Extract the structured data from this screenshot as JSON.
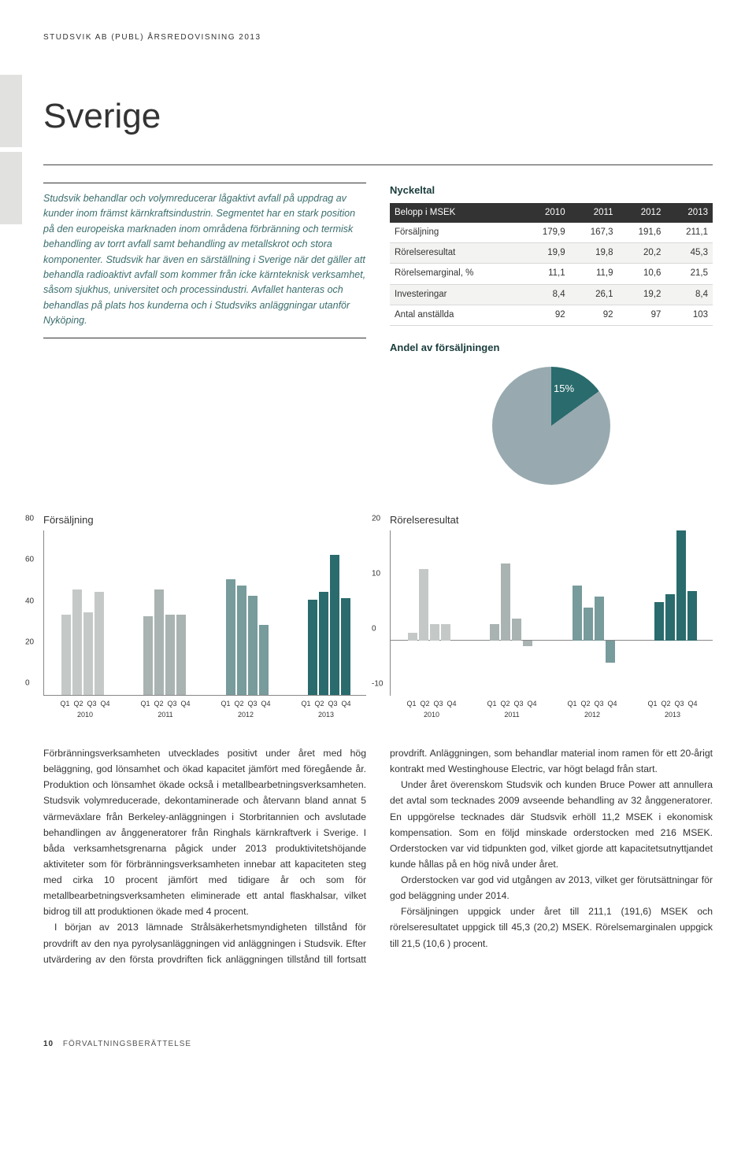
{
  "header": "STUDSVIK AB (PUBL) ÅRSREDOVISNING 2013",
  "title": "Sverige",
  "intro": "Studsvik behandlar och volymreducerar lågaktivt avfall på uppdrag av kunder inom främst kärnkraftsindustrin. Segmentet har en stark position på den europeiska marknaden inom områdena förbränning och termisk behandling av torrt avfall samt behandling av metallskrot och stora komponenter. Studsvik har även en särställning i Sverige när det gäller att behandla radioaktivt avfall som kommer från icke kärnteknisk verksamhet, såsom sjukhus, universitet och processindustri. Avfallet hanteras och behandlas på plats hos kunderna och i Studsviks anläggningar utanför Nyköping.",
  "kpi": {
    "title": "Nyckeltal",
    "header_label": "Belopp i MSEK",
    "years": [
      "2010",
      "2011",
      "2012",
      "2013"
    ],
    "rows": [
      {
        "label": "Försäljning",
        "v": [
          "179,9",
          "167,3",
          "191,6",
          "211,1"
        ]
      },
      {
        "label": "Rörelseresultat",
        "v": [
          "19,9",
          "19,8",
          "20,2",
          "45,3"
        ]
      },
      {
        "label": "Rörelsemarginal, %",
        "v": [
          "11,1",
          "11,9",
          "10,6",
          "21,5"
        ]
      },
      {
        "label": "Investeringar",
        "v": [
          "8,4",
          "26,1",
          "19,2",
          "8,4"
        ]
      },
      {
        "label": "Antal anställda",
        "v": [
          "92",
          "92",
          "97",
          "103"
        ]
      }
    ]
  },
  "andel": {
    "title": "Andel av försäljningen",
    "slice_percent": 15,
    "slice_label": "15%",
    "slice_color": "#2a6b6d",
    "rest_color": "#98aab0"
  },
  "chart_colors": [
    "#c4c9c7",
    "#a9b3b1",
    "#789b9c",
    "#2a6b6d"
  ],
  "sales_chart": {
    "title": "Försäljning",
    "y_max": 80,
    "y_ticks": [
      0,
      20,
      40,
      60,
      80
    ],
    "years": [
      "2010",
      "2011",
      "2012",
      "2013"
    ],
    "quarters": [
      "Q1",
      "Q2",
      "Q3",
      "Q4"
    ],
    "data": [
      [
        39,
        51,
        40,
        50
      ],
      [
        38,
        51,
        39,
        39
      ],
      [
        56,
        53,
        48,
        34
      ],
      [
        46,
        50,
        68,
        47
      ]
    ]
  },
  "result_chart": {
    "title": "Rörelseresultat",
    "y_min": -10,
    "y_max": 20,
    "y_ticks": [
      -10,
      0,
      10,
      20
    ],
    "years": [
      "2010",
      "2011",
      "2012",
      "2013"
    ],
    "quarters": [
      "Q1",
      "Q2",
      "Q3",
      "Q4"
    ],
    "data": [
      [
        1.5,
        13,
        3,
        3
      ],
      [
        3,
        14,
        4,
        -1
      ],
      [
        10,
        6,
        8,
        -4
      ],
      [
        7,
        8.5,
        20,
        9
      ]
    ]
  },
  "body": {
    "p1": "Förbränningsverksamheten utvecklades positivt under året med hög beläggning, god lönsamhet och ökad kapacitet jämfört med föregående år. Produktion och lönsamhet ökade också i metallbearbetningsverksamheten. Studsvik volymreducerade, dekontaminerade och återvann bland annat 5 värmeväxlare från Berkeley-anläggningen i Storbritannien och avslutade behandlingen av ånggeneratorer från Ringhals kärnkraftverk i Sverige. I båda verksamhetsgrenarna pågick under 2013 produktivitetshöjande aktiviteter som för förbränningsverksamheten innebar att kapaciteten steg med cirka 10 procent jämfört med tidigare år och som för metallbearbetningsverksamheten eliminerade ett antal flaskhalsar, vilket bidrog till att produktionen ökade med 4 procent.",
    "p2": "I början av 2013 lämnade Strålsäkerhetsmyndigheten tillstånd för provdrift av den nya pyrolysanläggningen vid anläggningen i Studsvik. Efter utvärdering av den första provdriften fick anläggningen tillstånd till fortsatt provdrift. Anläggningen, som behandlar material inom ramen för ett 20-årigt kontrakt med Westinghouse Electric, var högt belagd från start.",
    "p3": "Under året överenskom Studsvik och kunden Bruce Power att annullera det avtal som tecknades 2009 avseende behandling av 32 ånggeneratorer. En uppgörelse tecknades där Studsvik erhöll 11,2 MSEK i ekonomisk kompensation. Som en följd minskade orderstocken med 216 MSEK. Orderstocken var vid tidpunkten god, vilket gjorde att kapacitetsutnyttjandet kunde hållas på en hög nivå under året.",
    "p4": "Orderstocken var god vid utgången av 2013, vilket ger förutsättningar för god beläggning under 2014.",
    "p5": "Försäljningen uppgick under året till 211,1 (191,6) MSEK och rörelseresultatet uppgick till 45,3 (20,2) MSEK. Rörelsemarginalen uppgick till 21,5 (10,6 ) procent."
  },
  "footer": {
    "page": "10",
    "section": "FÖRVALTNINGSBERÄTTELSE"
  }
}
